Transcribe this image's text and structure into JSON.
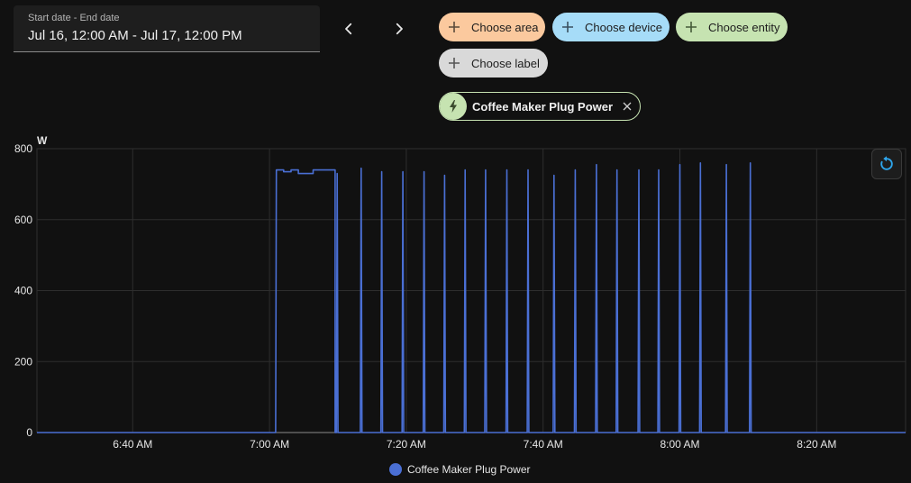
{
  "date_range": {
    "label": "Start date - End date",
    "value": "Jul 16, 12:00 AM - Jul 17, 12:00 PM"
  },
  "nav": {
    "prev_icon": "chevron-left-icon",
    "next_icon": "chevron-right-icon"
  },
  "target_chips": {
    "area": "Choose area",
    "device": "Choose device",
    "entity": "Choose entity",
    "label": "Choose label"
  },
  "selected_entity": {
    "name": "Coffee Maker Plug Power",
    "icon": "flash-icon"
  },
  "colors": {
    "series": "#4a6fd4",
    "area_chip": "#fbc99e",
    "device_chip": "#a6dcf8",
    "entity_chip": "#c6e3b1",
    "label_chip": "#d9d9d9"
  },
  "chart_data": {
    "type": "line",
    "ylabel": "W",
    "ylim": [
      0,
      800
    ],
    "yticks": [
      "0",
      "200",
      "400",
      "600",
      "800"
    ],
    "xlim_minutes": [
      386,
      513
    ],
    "xticks": [
      {
        "min": 400,
        "label": "6:40 AM"
      },
      {
        "min": 420,
        "label": "7:00 AM"
      },
      {
        "min": 440,
        "label": "7:20 AM"
      },
      {
        "min": 460,
        "label": "7:40 AM"
      },
      {
        "min": 480,
        "label": "8:00 AM"
      },
      {
        "min": 500,
        "label": "8:20 AM"
      }
    ],
    "grid": true,
    "legend": "bottom",
    "series": [
      {
        "name": "Coffee Maker Plug Power",
        "plateau": {
          "start": 421.0,
          "end": 429.6,
          "values": [
            740,
            735,
            740,
            730,
            730,
            740,
            740,
            740
          ]
        },
        "spikes": [
          {
            "t": 429.9,
            "v": 730
          },
          {
            "t": 433.4,
            "v": 745
          },
          {
            "t": 436.4,
            "v": 735
          },
          {
            "t": 439.5,
            "v": 735
          },
          {
            "t": 442.6,
            "v": 735
          },
          {
            "t": 445.6,
            "v": 725
          },
          {
            "t": 448.6,
            "v": 740
          },
          {
            "t": 451.6,
            "v": 740
          },
          {
            "t": 454.7,
            "v": 740
          },
          {
            "t": 457.8,
            "v": 740
          },
          {
            "t": 461.6,
            "v": 725
          },
          {
            "t": 464.7,
            "v": 740
          },
          {
            "t": 467.8,
            "v": 755
          },
          {
            "t": 470.8,
            "v": 740
          },
          {
            "t": 474.0,
            "v": 740
          },
          {
            "t": 476.9,
            "v": 740
          },
          {
            "t": 480.0,
            "v": 755
          },
          {
            "t": 483.0,
            "v": 760
          },
          {
            "t": 486.8,
            "v": 755
          },
          {
            "t": 490.3,
            "v": 760
          }
        ]
      }
    ]
  }
}
